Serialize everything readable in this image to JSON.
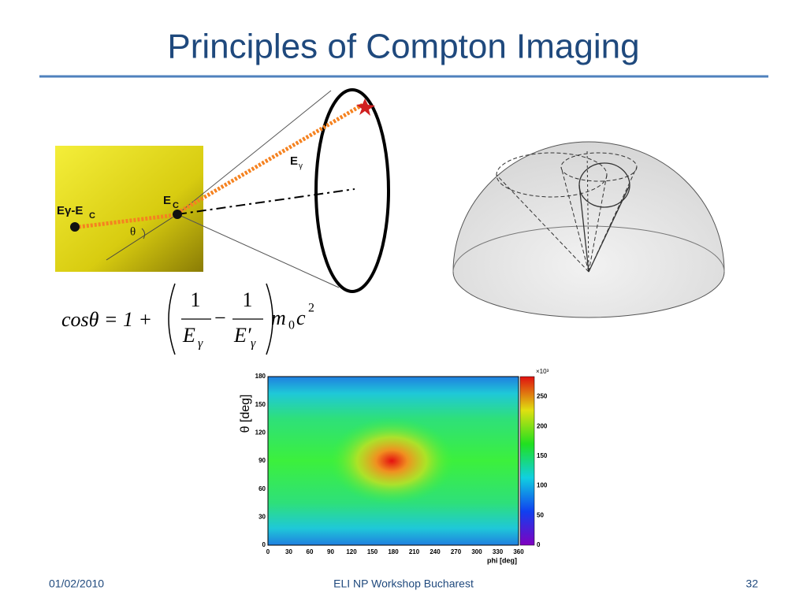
{
  "header": {
    "title": "Principles of Compton Imaging"
  },
  "diagram": {
    "absorbed_label": "Eγ-E",
    "absorbed_sub": "C",
    "scatter_label": "E",
    "scatter_sub": "C",
    "gamma_label": "E",
    "gamma_sub": "γ",
    "angle_label": "θ"
  },
  "formula": {
    "lhs": "cosθ = 1 +",
    "num1": "1",
    "den1": "E",
    "den1_sub": "γ",
    "minus": "−",
    "num2": "1",
    "den2": "E′",
    "den2_sub": "γ",
    "mass": "m",
    "mass_sub": "0",
    "c": "c",
    "c_sup": "2"
  },
  "heatmap": {
    "y_label": "θ [deg]",
    "x_label": "phi [deg]",
    "x_ticks": [
      "0",
      "30",
      "60",
      "90",
      "120",
      "150",
      "180",
      "210",
      "240",
      "270",
      "300",
      "330",
      "360"
    ],
    "y_ticks": [
      "0",
      "30",
      "60",
      "90",
      "120",
      "150",
      "180"
    ],
    "colorbar_ticks": [
      "0",
      "50",
      "100",
      "150",
      "200",
      "250"
    ],
    "colorbar_exponent": "×10³"
  },
  "footer": {
    "date": "01/02/2010",
    "event": "ELI NP Workshop Bucharest",
    "page": "32"
  }
}
